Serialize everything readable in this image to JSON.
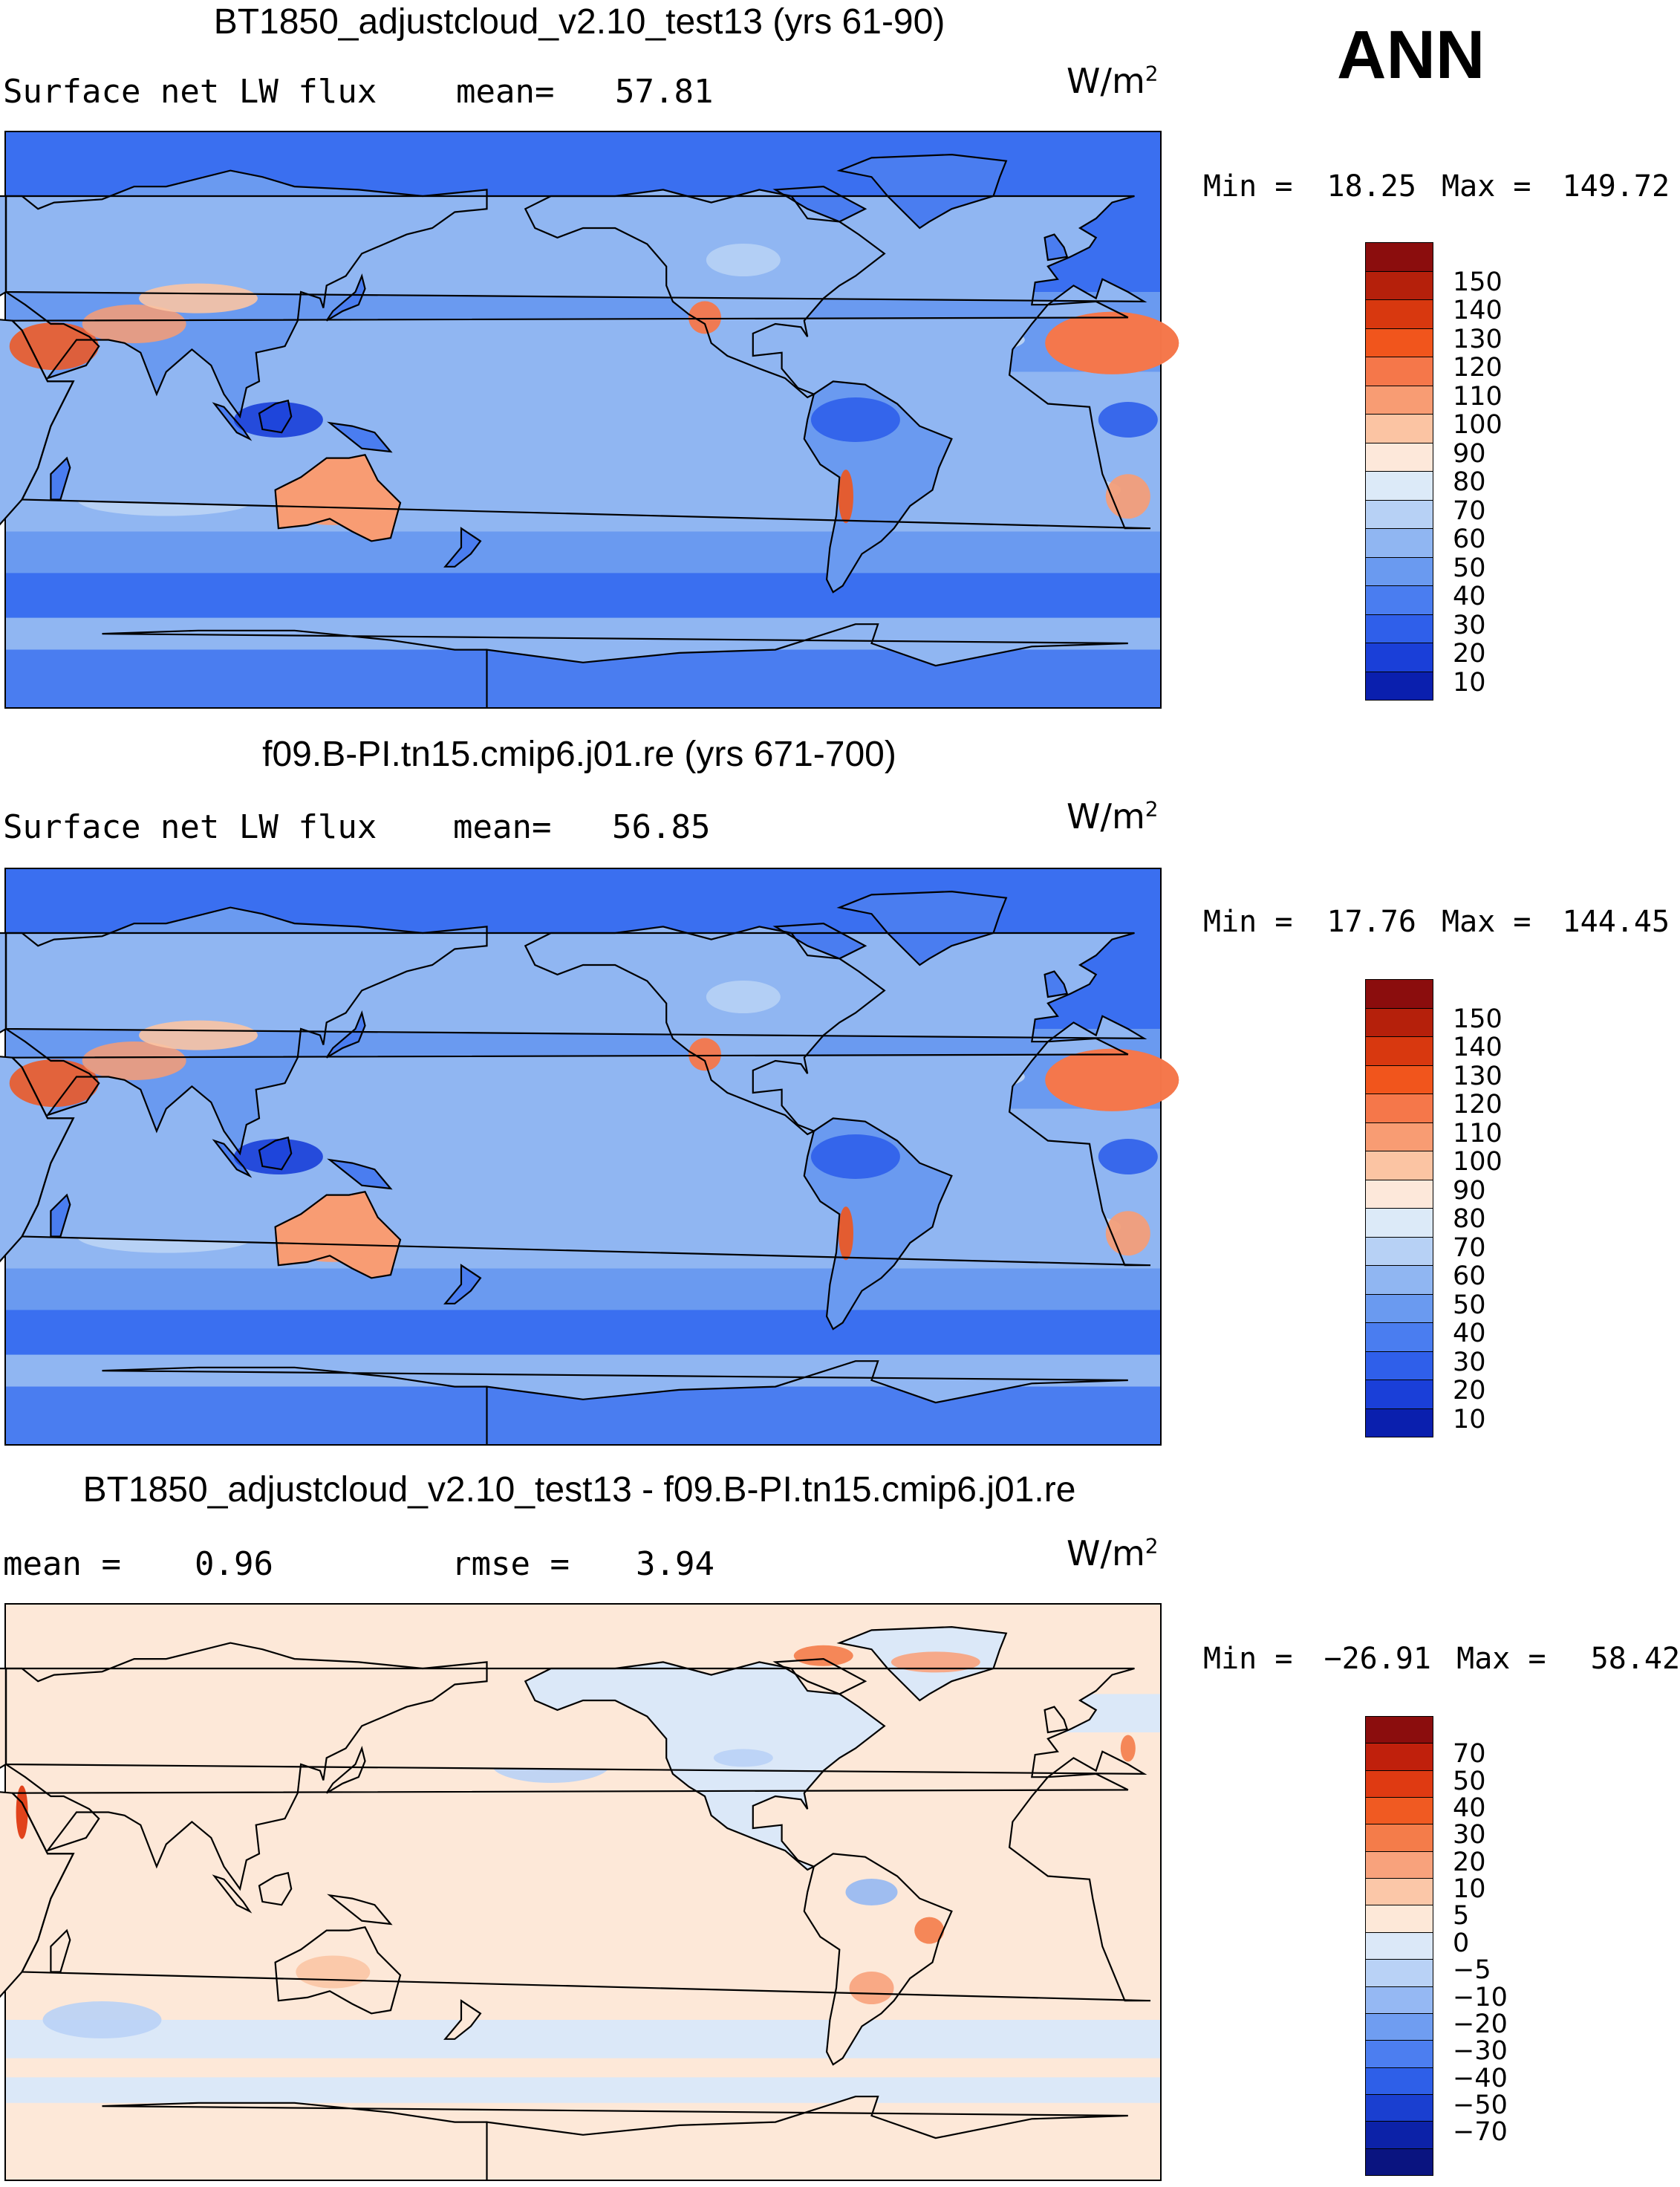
{
  "header": {
    "season": "ANN"
  },
  "panels": [
    {
      "title": "BT1850_adjustcloud_v2.10_test13 (yrs 61-90)",
      "left_label": "Surface net LW flux",
      "stat_label": "mean=",
      "stat_value": "57.81",
      "units_base": "W/m",
      "units_exp": "2",
      "min_label": "Min =",
      "min_value": "18.25",
      "max_label": "Max =",
      "max_value": "149.72",
      "field": "absolute",
      "colorbar": {
        "colors": [
          "#8b0d0d",
          "#b5200b",
          "#d8380f",
          "#f1551c",
          "#f5774a",
          "#f89c73",
          "#fbc4a3",
          "#fde8da",
          "#dceaf8",
          "#b7d1f5",
          "#90b6f2",
          "#6a9af0",
          "#4a7df0",
          "#2f5fea",
          "#1a3fd8",
          "#0a1fae"
        ],
        "labels": [
          "150",
          "140",
          "130",
          "120",
          "110",
          "100",
          "90",
          "80",
          "70",
          "60",
          "50",
          "40",
          "30",
          "20",
          "10"
        ]
      }
    },
    {
      "title": "f09.B-PI.tn15.cmip6.j01.re (yrs 671-700)",
      "left_label": "Surface net LW flux",
      "stat_label": "mean=",
      "stat_value": "56.85",
      "units_base": "W/m",
      "units_exp": "2",
      "min_label": "Min =",
      "min_value": "17.76",
      "max_label": "Max =",
      "max_value": "144.45",
      "field": "absolute",
      "colorbar": {
        "colors": [
          "#8b0d0d",
          "#b5200b",
          "#d8380f",
          "#f1551c",
          "#f5774a",
          "#f89c73",
          "#fbc4a3",
          "#fde8da",
          "#dceaf8",
          "#b7d1f5",
          "#90b6f2",
          "#6a9af0",
          "#4a7df0",
          "#2f5fea",
          "#1a3fd8",
          "#0a1fae"
        ],
        "labels": [
          "150",
          "140",
          "130",
          "120",
          "110",
          "100",
          "90",
          "80",
          "70",
          "60",
          "50",
          "40",
          "30",
          "20",
          "10"
        ]
      }
    },
    {
      "title": "BT1850_adjustcloud_v2.10_test13 - f09.B-PI.tn15.cmip6.j01.re",
      "left_label": "mean =",
      "left_value": "0.96",
      "stat_label": "rmse =",
      "stat_value": "3.94",
      "units_base": "W/m",
      "units_exp": "2",
      "min_label": "Min =",
      "min_value": "−26.91",
      "max_label": "Max =",
      "max_value": "58.42",
      "field": "difference",
      "colorbar": {
        "colors": [
          "#8b0d0d",
          "#c0200c",
          "#df3a12",
          "#f05a22",
          "#f47c4a",
          "#f8a27c",
          "#fbc7a8",
          "#fde8d8",
          "#dbe8f8",
          "#b9d2f6",
          "#95b8f3",
          "#6f9df1",
          "#4c7ef0",
          "#2e5fe8",
          "#1a3fd0",
          "#0c22a8",
          "#0a1480"
        ],
        "labels": [
          "70",
          "50",
          "40",
          "30",
          "20",
          "10",
          "5",
          "0",
          "−5",
          "−10",
          "−20",
          "−30",
          "−40",
          "−50",
          "−70"
        ]
      }
    }
  ]
}
